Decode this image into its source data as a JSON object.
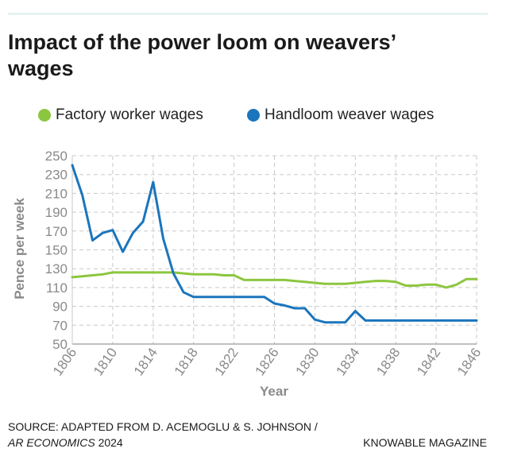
{
  "header": {
    "title": "Impact of the power loom on weavers’ wages"
  },
  "colors": {
    "factory": "#8cc63f",
    "handloom": "#1b75bc",
    "grid": "#c9c9c9",
    "axis_text": "#8a8a8a",
    "title": "#1a1a1a"
  },
  "chart_data": {
    "type": "line",
    "title": "Impact of the power loom on weavers’ wages",
    "xlabel": "Year",
    "ylabel": "Pence per week",
    "xlim": [
      1806,
      1846
    ],
    "ylim": [
      50,
      250
    ],
    "x_ticks": [
      1806,
      1810,
      1814,
      1818,
      1822,
      1826,
      1830,
      1834,
      1838,
      1842,
      1846
    ],
    "y_ticks": [
      50,
      70,
      90,
      110,
      130,
      150,
      170,
      190,
      210,
      230,
      250
    ],
    "grid": true,
    "legend": "top",
    "series": [
      {
        "name": "Factory worker wages",
        "color": "#8cc63f",
        "points": [
          [
            1806,
            121
          ],
          [
            1807,
            122
          ],
          [
            1808,
            123
          ],
          [
            1809,
            124
          ],
          [
            1810,
            126
          ],
          [
            1811,
            126
          ],
          [
            1812,
            126
          ],
          [
            1813,
            126
          ],
          [
            1814,
            126
          ],
          [
            1815,
            126
          ],
          [
            1816,
            126
          ],
          [
            1817,
            125
          ],
          [
            1818,
            124
          ],
          [
            1819,
            124
          ],
          [
            1820,
            124
          ],
          [
            1821,
            123
          ],
          [
            1822,
            123
          ],
          [
            1823,
            118
          ],
          [
            1824,
            118
          ],
          [
            1825,
            118
          ],
          [
            1826,
            118
          ],
          [
            1827,
            118
          ],
          [
            1828,
            117
          ],
          [
            1829,
            116
          ],
          [
            1830,
            115
          ],
          [
            1831,
            114
          ],
          [
            1832,
            114
          ],
          [
            1833,
            114
          ],
          [
            1834,
            115
          ],
          [
            1835,
            116
          ],
          [
            1836,
            117
          ],
          [
            1837,
            117
          ],
          [
            1838,
            116
          ],
          [
            1839,
            112
          ],
          [
            1840,
            112
          ],
          [
            1841,
            113
          ],
          [
            1842,
            113
          ],
          [
            1843,
            110
          ],
          [
            1844,
            113
          ],
          [
            1845,
            119
          ],
          [
            1846,
            119
          ]
        ]
      },
      {
        "name": "Handloom weaver wages",
        "color": "#1b75bc",
        "points": [
          [
            1806,
            240
          ],
          [
            1807,
            208
          ],
          [
            1808,
            160
          ],
          [
            1809,
            168
          ],
          [
            1810,
            171
          ],
          [
            1811,
            148
          ],
          [
            1812,
            168
          ],
          [
            1813,
            180
          ],
          [
            1814,
            222
          ],
          [
            1815,
            162
          ],
          [
            1816,
            125
          ],
          [
            1817,
            105
          ],
          [
            1818,
            100
          ],
          [
            1819,
            100
          ],
          [
            1820,
            100
          ],
          [
            1821,
            100
          ],
          [
            1822,
            100
          ],
          [
            1823,
            100
          ],
          [
            1824,
            100
          ],
          [
            1825,
            100
          ],
          [
            1826,
            93
          ],
          [
            1827,
            91
          ],
          [
            1828,
            88
          ],
          [
            1829,
            88
          ],
          [
            1830,
            76
          ],
          [
            1831,
            73
          ],
          [
            1832,
            73
          ],
          [
            1833,
            73
          ],
          [
            1834,
            85
          ],
          [
            1835,
            75
          ],
          [
            1836,
            75
          ],
          [
            1837,
            75
          ],
          [
            1838,
            75
          ],
          [
            1839,
            75
          ],
          [
            1840,
            75
          ],
          [
            1841,
            75
          ],
          [
            1842,
            75
          ],
          [
            1843,
            75
          ],
          [
            1844,
            75
          ],
          [
            1845,
            75
          ],
          [
            1846,
            75
          ]
        ]
      }
    ]
  },
  "footer": {
    "source_line1": "SOURCE: ADAPTED FROM D. ACEMOGLU & S. JOHNSON /",
    "source_publication": "AR ECONOMICS",
    "source_year": " 2024",
    "brand": "KNOWABLE MAGAZINE"
  }
}
